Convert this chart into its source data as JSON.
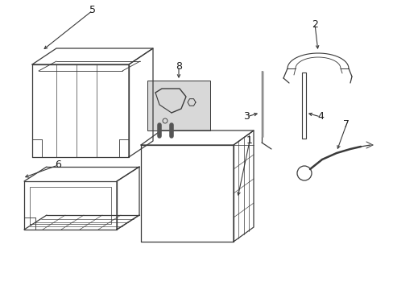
{
  "bg_color": "#ffffff",
  "lc": "#3a3a3a",
  "lw": 0.9,
  "figsize": [
    4.89,
    3.6
  ],
  "dpi": 100,
  "xlim": [
    0,
    489
  ],
  "ylim": [
    0,
    360
  ]
}
